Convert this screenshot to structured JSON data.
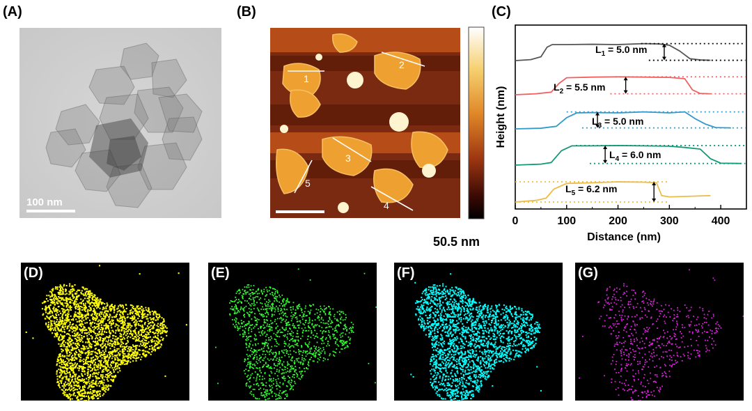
{
  "figure": {
    "panels": {
      "A": {
        "label": "(A)",
        "scale_bar": "100 nm"
      },
      "B": {
        "label": "(B)",
        "scale_top": "50.5 nm",
        "line_labels": [
          "1",
          "2",
          "3",
          "4",
          "5"
        ]
      },
      "C": {
        "label": "(C)"
      },
      "D": {
        "label": "(D)",
        "color": "#ffff00"
      },
      "E": {
        "label": "(E)",
        "color": "#33ff33"
      },
      "F": {
        "label": "(F)",
        "color": "#00ffff"
      },
      "G": {
        "label": "(G)",
        "color": "#dd22dd"
      }
    }
  },
  "chart_data": {
    "type": "line",
    "xlabel": "Distance (nm)",
    "ylabel": "Height (nm)",
    "xlim": [
      0,
      450
    ],
    "xticks": [
      "0",
      "100",
      "200",
      "300",
      "400"
    ],
    "series": [
      {
        "color": "#555555",
        "annotation_main": "L",
        "annotation_sub": "1",
        "annotation_value": " = 5.0 nm",
        "x": [
          0,
          30,
          50,
          62,
          72,
          100,
          150,
          200,
          250,
          280,
          300,
          320,
          340,
          360,
          380
        ],
        "y": [
          0.0,
          0.3,
          1.2,
          4.2,
          5.0,
          5.0,
          5.1,
          5.0,
          5.3,
          5.2,
          4.8,
          3.0,
          0.6,
          0.2,
          0.1
        ]
      },
      {
        "color": "#f06060",
        "annotation_main": "L",
        "annotation_sub": "2",
        "annotation_value": " = 5.5 nm",
        "x": [
          0,
          40,
          70,
          85,
          100,
          150,
          200,
          250,
          300,
          330,
          345,
          360,
          380
        ],
        "y": [
          0.0,
          0.3,
          0.8,
          3.5,
          5.3,
          5.5,
          5.6,
          5.5,
          5.4,
          5.0,
          1.5,
          0.4,
          0.3
        ]
      },
      {
        "color": "#3399cc",
        "annotation_main": "L",
        "annotation_sub": "3",
        "annotation_value": " = 5.0 nm",
        "x": [
          0,
          50,
          80,
          100,
          120,
          150,
          200,
          250,
          300,
          330,
          350,
          370,
          390,
          420
        ],
        "y": [
          0.0,
          0.2,
          0.8,
          3.5,
          5.0,
          5.1,
          5.0,
          5.3,
          5.0,
          5.3,
          3.2,
          1.5,
          0.4,
          0.3
        ]
      },
      {
        "color": "#119977",
        "annotation_main": "L",
        "annotation_sub": "4",
        "annotation_value": " = 6.0 nm",
        "x": [
          0,
          50,
          70,
          90,
          110,
          150,
          200,
          250,
          300,
          330,
          360,
          380,
          400,
          440
        ],
        "y": [
          0.0,
          0.3,
          0.8,
          4.5,
          6.0,
          6.0,
          6.1,
          6.0,
          5.9,
          5.5,
          5.0,
          2.0,
          0.6,
          0.5
        ]
      },
      {
        "color": "#eebb44",
        "annotation_main": "L",
        "annotation_sub": "5",
        "annotation_value": " = 6.2 nm",
        "x": [
          0,
          40,
          60,
          75,
          100,
          150,
          200,
          250,
          275,
          285,
          300,
          340,
          380
        ],
        "y": [
          0.0,
          0.5,
          1.2,
          4.0,
          5.8,
          6.0,
          6.3,
          6.2,
          6.0,
          2.0,
          1.6,
          1.8,
          2.0
        ]
      }
    ]
  }
}
